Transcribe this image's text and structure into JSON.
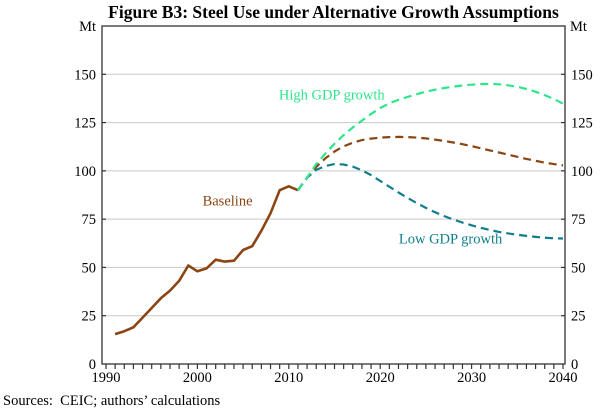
{
  "figure": {
    "title": "Figure B3: Steel Use under Alternative Growth Assumptions",
    "unit_left": "Mt",
    "unit_right": "Mt",
    "sources": "Sources:  CEIC; authors’ calculations"
  },
  "colors": {
    "baseline_brown": "#8B4513",
    "high_green": "#2EE68A",
    "low_teal": "#107E8C",
    "grid": "#CACACA",
    "axis": "#333333"
  },
  "chart_data": {
    "type": "line",
    "title": "Figure B3: Steel Use under Alternative Growth Assumptions",
    "ylabel": "Mt",
    "ylim": [
      0,
      175
    ],
    "xlim": [
      1989.5,
      2040.3
    ],
    "grid": true,
    "y_ticks": [
      0,
      25,
      50,
      75,
      100,
      125,
      150
    ],
    "x_major_ticks": [
      1990,
      2000,
      2010,
      2020,
      2030,
      2040
    ],
    "x_minor_tick_step": 1,
    "series": [
      {
        "name": "Baseline (history)",
        "color": "#8B4513",
        "style": "solid",
        "x": [
          1991,
          1992,
          1993,
          1994,
          1995,
          1996,
          1997,
          1998,
          1999,
          2000,
          2001,
          2002,
          2003,
          2004,
          2005,
          2006,
          2007,
          2008,
          2009,
          2010,
          2011
        ],
        "values": [
          15.5,
          17,
          19,
          24,
          29,
          34,
          38,
          43,
          51,
          48,
          49.5,
          54,
          53,
          53.5,
          59,
          61,
          69,
          78,
          90,
          92,
          90
        ]
      },
      {
        "name": "Baseline (projection)",
        "color": "#8B4513",
        "style": "dashed",
        "x": [
          2011,
          2012,
          2013,
          2014,
          2015,
          2016,
          2017,
          2018,
          2019,
          2020,
          2021,
          2022,
          2023,
          2024,
          2025,
          2026,
          2027,
          2028,
          2029,
          2030,
          2031,
          2032,
          2033,
          2034,
          2035,
          2036,
          2037,
          2038,
          2039,
          2040
        ],
        "values": [
          90,
          96.5,
          102,
          106.5,
          110,
          112.7,
          114.6,
          115.9,
          116.7,
          117.2,
          117.5,
          117.6,
          117.5,
          117.2,
          116.8,
          116.2,
          115.5,
          114.7,
          113.8,
          112.8,
          111.7,
          110.6,
          109.5,
          108.4,
          107.3,
          106.2,
          105.2,
          104.3,
          103.5,
          102.8
        ]
      },
      {
        "name": "Low GDP growth",
        "color": "#107E8C",
        "style": "dashed",
        "x": [
          2011,
          2012,
          2013,
          2014,
          2015,
          2016,
          2017,
          2018,
          2019,
          2020,
          2021,
          2022,
          2023,
          2024,
          2025,
          2026,
          2027,
          2028,
          2029,
          2030,
          2031,
          2032,
          2033,
          2034,
          2035,
          2036,
          2037,
          2038,
          2039,
          2040
        ],
        "values": [
          90,
          96.5,
          100.5,
          102.5,
          103.5,
          103.3,
          102.2,
          100.3,
          97.8,
          94.8,
          91.8,
          88.8,
          86,
          83.3,
          80.8,
          78.6,
          76.6,
          74.8,
          73.2,
          71.8,
          70.5,
          69.4,
          68.4,
          67.6,
          66.9,
          66.3,
          65.8,
          65.4,
          65.1,
          65
        ]
      },
      {
        "name": "High GDP growth",
        "color": "#2EE68A",
        "style": "dashed",
        "x": [
          2011,
          2012,
          2013,
          2014,
          2015,
          2016,
          2017,
          2018,
          2019,
          2020,
          2021,
          2022,
          2023,
          2024,
          2025,
          2026,
          2027,
          2028,
          2029,
          2030,
          2031,
          2032,
          2033,
          2034,
          2035,
          2036,
          2037,
          2038,
          2039,
          2040
        ],
        "values": [
          90,
          96.5,
          103.5,
          109,
          114,
          118.5,
          122.5,
          126,
          129.5,
          132.5,
          135,
          136.8,
          138.3,
          139.7,
          141,
          142,
          142.9,
          143.6,
          144.2,
          144.6,
          144.9,
          145,
          144.8,
          144.3,
          143.5,
          142.4,
          141,
          139.2,
          137.2,
          134.8
        ]
      }
    ],
    "annotations": [
      {
        "text": "Baseline",
        "color": "#8B4513",
        "x": 2003.3,
        "y": 84
      },
      {
        "text": "High GDP growth",
        "color": "#2EE68A",
        "x": 2014.7,
        "y": 139
      },
      {
        "text": "Low GDP growth",
        "color": "#107E8C",
        "x": 2027.7,
        "y": 64
      }
    ]
  }
}
